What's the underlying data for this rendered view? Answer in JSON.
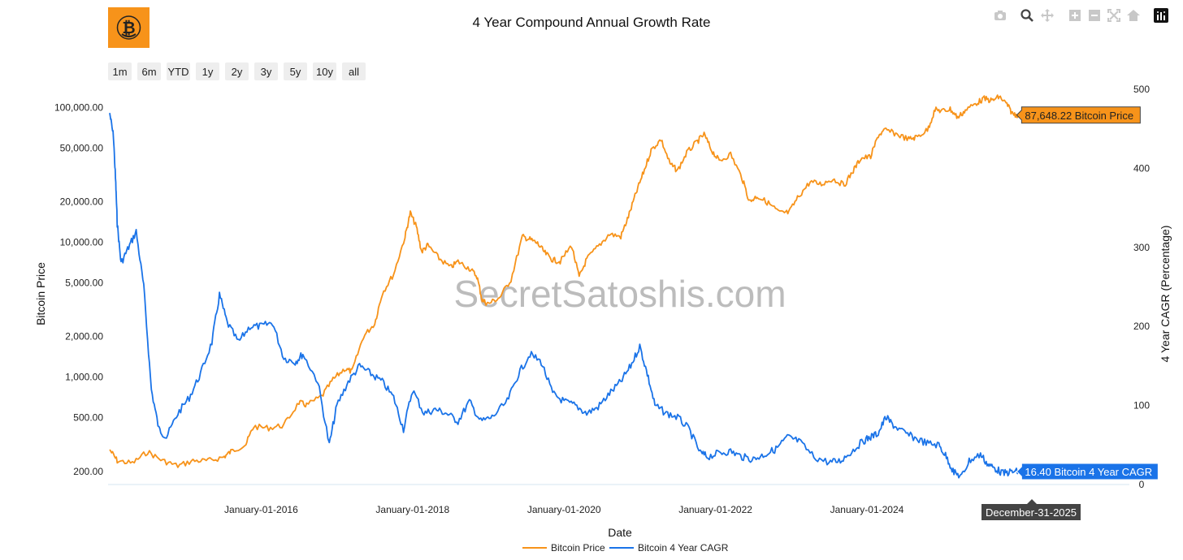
{
  "logo": {
    "name": "bitcoin-logo",
    "color": "#F7931A"
  },
  "title": "4 Year Compound Annual Growth Rate",
  "watermark": "SecretSatoshis.com",
  "modebar": [
    {
      "name": "camera-icon"
    },
    {
      "name": "zoom-icon"
    },
    {
      "name": "pan-icon"
    },
    {
      "name": "zoom-in-icon"
    },
    {
      "name": "zoom-out-icon"
    },
    {
      "name": "autoscale-icon"
    },
    {
      "name": "reset-axes-icon"
    },
    {
      "name": "plotly-logo-icon"
    }
  ],
  "range_selector": [
    "1m",
    "6m",
    "YTD",
    "1y",
    "2y",
    "3y",
    "5y",
    "10y",
    "all"
  ],
  "hover": {
    "price_label": "87,648.22 Bitcoin Price",
    "cagr_label": "16.40 Bitcoin 4 Year CAGR",
    "date_label": "December-31-2025"
  },
  "chart_data": {
    "type": "line",
    "title": "4 Year Compound Annual Growth Rate",
    "xlabel": "Date",
    "ylabel_left": "Bitcoin Price",
    "ylabel_right": "4 Year CAGR (Percentage)",
    "x_range": [
      2014.0,
      2026.2
    ],
    "x_ticks": [
      {
        "value": 2016,
        "label": "January-01-2016"
      },
      {
        "value": 2018,
        "label": "January-01-2018"
      },
      {
        "value": 2020,
        "label": "January-01-2020"
      },
      {
        "value": 2022,
        "label": "January-01-2022"
      },
      {
        "value": 2024,
        "label": "January-01-2024"
      }
    ],
    "y_left": {
      "scale": "log",
      "range": [
        160,
        150000
      ],
      "ticks": [
        {
          "value": 200,
          "label": "200.00"
        },
        {
          "value": 500,
          "label": "500.00"
        },
        {
          "value": 1000,
          "label": "1,000.00"
        },
        {
          "value": 2000,
          "label": "2,000.00"
        },
        {
          "value": 5000,
          "label": "5,000.00"
        },
        {
          "value": 10000,
          "label": "10,000.00"
        },
        {
          "value": 20000,
          "label": "20,000.00"
        },
        {
          "value": 50000,
          "label": "50,000.00"
        },
        {
          "value": 100000,
          "label": "100,000.00"
        }
      ]
    },
    "y_right": {
      "scale": "linear",
      "range": [
        0,
        500
      ],
      "ticks": [
        {
          "value": 0,
          "label": "0"
        },
        {
          "value": 100,
          "label": "100"
        },
        {
          "value": 200,
          "label": "200"
        },
        {
          "value": 300,
          "label": "300"
        },
        {
          "value": 400,
          "label": "400"
        },
        {
          "value": 500,
          "label": "500"
        }
      ]
    },
    "series": [
      {
        "name": "Bitcoin Price",
        "color": "#F7931A",
        "axis": "left",
        "points": [
          [
            2014.0,
            290
          ],
          [
            2014.1,
            240
          ],
          [
            2014.3,
            230
          ],
          [
            2014.5,
            280
          ],
          [
            2014.7,
            240
          ],
          [
            2014.9,
            220
          ],
          [
            2015.1,
            240
          ],
          [
            2015.3,
            240
          ],
          [
            2015.5,
            255
          ],
          [
            2015.6,
            280
          ],
          [
            2015.8,
            320
          ],
          [
            2015.9,
            430
          ],
          [
            2016.1,
            420
          ],
          [
            2016.3,
            440
          ],
          [
            2016.5,
            650
          ],
          [
            2016.6,
            620
          ],
          [
            2016.8,
            720
          ],
          [
            2016.95,
            960
          ],
          [
            2017.1,
            1150
          ],
          [
            2017.2,
            1100
          ],
          [
            2017.35,
            2000
          ],
          [
            2017.5,
            2500
          ],
          [
            2017.6,
            4200
          ],
          [
            2017.75,
            5800
          ],
          [
            2017.9,
            11000
          ],
          [
            2017.97,
            16500
          ],
          [
            2018.05,
            13000
          ],
          [
            2018.12,
            8500
          ],
          [
            2018.2,
            9500
          ],
          [
            2018.35,
            7600
          ],
          [
            2018.5,
            6500
          ],
          [
            2018.6,
            7200
          ],
          [
            2018.75,
            6400
          ],
          [
            2018.85,
            5600
          ],
          [
            2018.92,
            3700
          ],
          [
            2019.0,
            3500
          ],
          [
            2019.15,
            3900
          ],
          [
            2019.3,
            5300
          ],
          [
            2019.45,
            11000
          ],
          [
            2019.55,
            10500
          ],
          [
            2019.65,
            9800
          ],
          [
            2019.75,
            8300
          ],
          [
            2019.85,
            7400
          ],
          [
            2019.95,
            7200
          ],
          [
            2020.1,
            9500
          ],
          [
            2020.2,
            5500
          ],
          [
            2020.3,
            7500
          ],
          [
            2020.45,
            9300
          ],
          [
            2020.6,
            11500
          ],
          [
            2020.75,
            11000
          ],
          [
            2020.85,
            15500
          ],
          [
            2020.95,
            23000
          ],
          [
            2021.05,
            33000
          ],
          [
            2021.15,
            48000
          ],
          [
            2021.28,
            58000
          ],
          [
            2021.4,
            38000
          ],
          [
            2021.5,
            34000
          ],
          [
            2021.62,
            46000
          ],
          [
            2021.75,
            55000
          ],
          [
            2021.85,
            63000
          ],
          [
            2021.95,
            48000
          ],
          [
            2022.05,
            40000
          ],
          [
            2022.2,
            45000
          ],
          [
            2022.35,
            30000
          ],
          [
            2022.45,
            20000
          ],
          [
            2022.55,
            22000
          ],
          [
            2022.7,
            19500
          ],
          [
            2022.85,
            16500
          ],
          [
            2022.97,
            16600
          ],
          [
            2023.1,
            22000
          ],
          [
            2023.25,
            28000
          ],
          [
            2023.4,
            27000
          ],
          [
            2023.55,
            29500
          ],
          [
            2023.7,
            26500
          ],
          [
            2023.82,
            34000
          ],
          [
            2023.92,
            42000
          ],
          [
            2024.05,
            43000
          ],
          [
            2024.15,
            62000
          ],
          [
            2024.25,
            68000
          ],
          [
            2024.4,
            63000
          ],
          [
            2024.55,
            58000
          ],
          [
            2024.65,
            60000
          ],
          [
            2024.8,
            68000
          ],
          [
            2024.9,
            96000
          ],
          [
            2025.0,
            94000
          ],
          [
            2025.1,
            97000
          ],
          [
            2025.2,
            84000
          ],
          [
            2025.3,
            95000
          ],
          [
            2025.45,
            108000
          ],
          [
            2025.55,
            116000
          ],
          [
            2025.65,
            112000
          ],
          [
            2025.75,
            120000
          ],
          [
            2025.85,
            105000
          ],
          [
            2025.92,
            90000
          ],
          [
            2026.0,
            87648.22
          ]
        ]
      },
      {
        "name": "Bitcoin 4 Year CAGR",
        "color": "#1A73E8",
        "axis": "right",
        "points": [
          [
            2014.0,
            470
          ],
          [
            2014.05,
            440
          ],
          [
            2014.08,
            380
          ],
          [
            2014.1,
            330
          ],
          [
            2014.15,
            280
          ],
          [
            2014.25,
            300
          ],
          [
            2014.35,
            320
          ],
          [
            2014.45,
            250
          ],
          [
            2014.55,
            120
          ],
          [
            2014.65,
            70
          ],
          [
            2014.75,
            60
          ],
          [
            2014.9,
            90
          ],
          [
            2015.05,
            110
          ],
          [
            2015.2,
            140
          ],
          [
            2015.35,
            180
          ],
          [
            2015.45,
            240
          ],
          [
            2015.55,
            205
          ],
          [
            2015.7,
            180
          ],
          [
            2015.85,
            200
          ],
          [
            2016.0,
            200
          ],
          [
            2016.15,
            205
          ],
          [
            2016.3,
            160
          ],
          [
            2016.45,
            155
          ],
          [
            2016.55,
            165
          ],
          [
            2016.75,
            130
          ],
          [
            2016.9,
            50
          ],
          [
            2017.0,
            100
          ],
          [
            2017.15,
            130
          ],
          [
            2017.3,
            150
          ],
          [
            2017.45,
            140
          ],
          [
            2017.6,
            130
          ],
          [
            2017.75,
            110
          ],
          [
            2017.88,
            70
          ],
          [
            2018.0,
            120
          ],
          [
            2018.15,
            90
          ],
          [
            2018.3,
            95
          ],
          [
            2018.45,
            90
          ],
          [
            2018.6,
            80
          ],
          [
            2018.75,
            105
          ],
          [
            2018.9,
            80
          ],
          [
            2019.05,
            85
          ],
          [
            2019.25,
            105
          ],
          [
            2019.4,
            140
          ],
          [
            2019.55,
            165
          ],
          [
            2019.7,
            155
          ],
          [
            2019.85,
            115
          ],
          [
            2020.0,
            105
          ],
          [
            2020.15,
            100
          ],
          [
            2020.3,
            90
          ],
          [
            2020.45,
            98
          ],
          [
            2020.6,
            115
          ],
          [
            2020.75,
            130
          ],
          [
            2020.88,
            150
          ],
          [
            2021.0,
            175
          ],
          [
            2021.1,
            140
          ],
          [
            2021.2,
            100
          ],
          [
            2021.35,
            90
          ],
          [
            2021.5,
            85
          ],
          [
            2021.65,
            70
          ],
          [
            2021.8,
            40
          ],
          [
            2021.9,
            35
          ],
          [
            2022.05,
            40
          ],
          [
            2022.2,
            42
          ],
          [
            2022.35,
            35
          ],
          [
            2022.5,
            32
          ],
          [
            2022.65,
            38
          ],
          [
            2022.8,
            45
          ],
          [
            2022.95,
            60
          ],
          [
            2023.1,
            55
          ],
          [
            2023.3,
            35
          ],
          [
            2023.5,
            28
          ],
          [
            2023.65,
            30
          ],
          [
            2023.8,
            42
          ],
          [
            2023.95,
            55
          ],
          [
            2024.05,
            60
          ],
          [
            2024.15,
            65
          ],
          [
            2024.25,
            85
          ],
          [
            2024.35,
            75
          ],
          [
            2024.5,
            65
          ],
          [
            2024.65,
            58
          ],
          [
            2024.8,
            52
          ],
          [
            2024.95,
            50
          ],
          [
            2025.05,
            35
          ],
          [
            2025.15,
            15
          ],
          [
            2025.25,
            10
          ],
          [
            2025.35,
            30
          ],
          [
            2025.5,
            38
          ],
          [
            2025.6,
            25
          ],
          [
            2025.7,
            20
          ],
          [
            2025.8,
            14
          ],
          [
            2025.9,
            16
          ],
          [
            2026.0,
            16.4
          ]
        ]
      }
    ]
  }
}
